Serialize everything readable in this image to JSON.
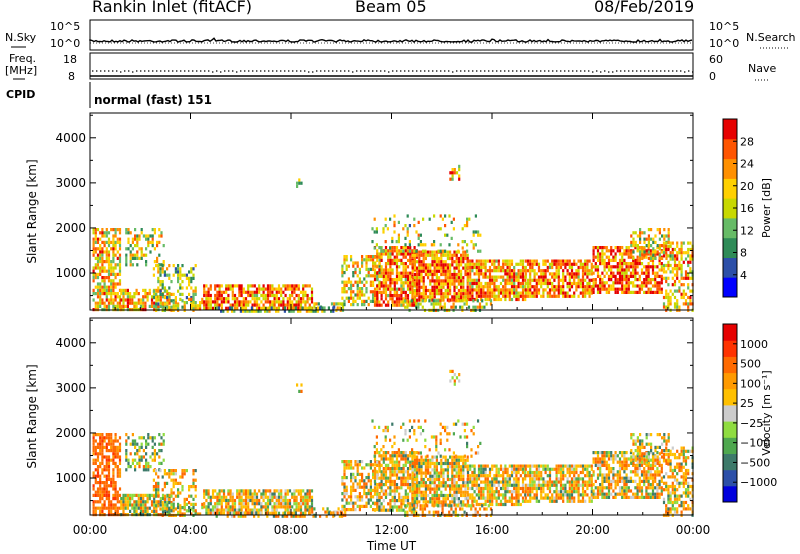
{
  "header": {
    "title": "Rankin Inlet (fitACF)",
    "beam": "Beam 05",
    "date": "08/Feb/2019"
  },
  "panels": {
    "nsky": {
      "label": "N.Sky",
      "top_tick": "10^5",
      "bottom_tick": "10^0",
      "right_label": "N.Search"
    },
    "freq": {
      "label_line1": "Freq.",
      "label_line2": "[MHz]",
      "top_tick": "18",
      "bottom_tick": "8",
      "right_top": "60",
      "right_bottom": "0",
      "right_label": "Nave"
    },
    "cpid": {
      "label": "CPID",
      "mode": "normal (fast) 151"
    }
  },
  "chart_data": [
    {
      "type": "heatmap",
      "name_var": "power",
      "ylabel": "Slant Range [km]",
      "yticks": [
        1000,
        2000,
        3000,
        4000
      ],
      "ylim": [
        180,
        4550
      ],
      "xlim": [
        0,
        24
      ],
      "colorbar": {
        "label": "Power [dB]",
        "ticks": [
          "4",
          "8",
          "12",
          "16",
          "20",
          "24",
          "28"
        ],
        "colors": [
          "#0000ff",
          "#2c4fa8",
          "#2e8b57",
          "#66bb66",
          "#c8d800",
          "#ffd000",
          "#ff9000",
          "#ff5500",
          "#e60000"
        ]
      }
    },
    {
      "type": "heatmap",
      "name_var": "velocity",
      "ylabel": "Slant Range [km]",
      "yticks": [
        1000,
        2000,
        3000,
        4000
      ],
      "ylim": [
        180,
        4550
      ],
      "xlim": [
        0,
        24
      ],
      "xticks": [
        "00:00",
        "04:00",
        "08:00",
        "12:00",
        "16:00",
        "20:00",
        "00:00"
      ],
      "xlabel": "Time UT",
      "colorbar": {
        "label": "Velocity [m s⁻¹]",
        "ticks": [
          "1000",
          "500",
          "100",
          "25",
          "−25",
          "−100",
          "−500",
          "−1000"
        ],
        "colors": [
          "#0000dd",
          "#2c4fa8",
          "#3d7a6a",
          "#4fa84f",
          "#8fdc40",
          "#cccccc",
          "#ffc000",
          "#ff9a00",
          "#ff6a00",
          "#ff3300",
          "#e60000"
        ]
      }
    }
  ]
}
